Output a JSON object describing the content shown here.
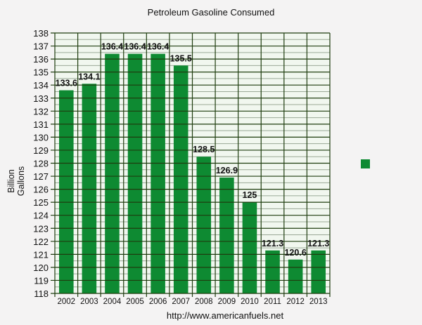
{
  "chart_data": {
    "type": "bar",
    "title": "Petroleum Gasoline Consumed",
    "xlabel": "",
    "ylabel": "Billion Gallons",
    "categories": [
      "2002",
      "2003",
      "2004",
      "2005",
      "2006",
      "2007",
      "2008",
      "2009",
      "2010",
      "2011",
      "2012",
      "2013"
    ],
    "values": [
      133.6,
      134.1,
      136.4,
      136.4,
      136.4,
      135.5,
      128.5,
      126.9,
      125,
      121.3,
      120.6,
      121.3
    ],
    "data_labels": [
      "133.6",
      "134.1",
      "136.4",
      "136.4",
      "136.4",
      "135.5",
      "128.5",
      "126.9",
      "125",
      "121.3",
      "120.6",
      "121.3"
    ],
    "ylim": [
      118,
      138
    ],
    "yticks": [
      118,
      119,
      120,
      121,
      122,
      123,
      124,
      125,
      126,
      127,
      128,
      129,
      130,
      131,
      132,
      133,
      134,
      135,
      136,
      137,
      138
    ],
    "grid": true,
    "legend_position": "right",
    "legend_entries": [
      ""
    ],
    "bar_color": "#0e8a32"
  },
  "header": {
    "title": "Petroleum Gasoline Consumed"
  },
  "axis": {
    "ylabel_line1": "Billion",
    "ylabel_line2": "Gallons"
  },
  "footer": {
    "source": "http://www.americanfuels.net"
  },
  "colors": {
    "bar": "#0e8a32",
    "grid_major": "#1f3d0f",
    "grid_minor": "#9aa896",
    "plot_bg": "#f1f7ef",
    "page_bg": "#f4f3f3"
  }
}
